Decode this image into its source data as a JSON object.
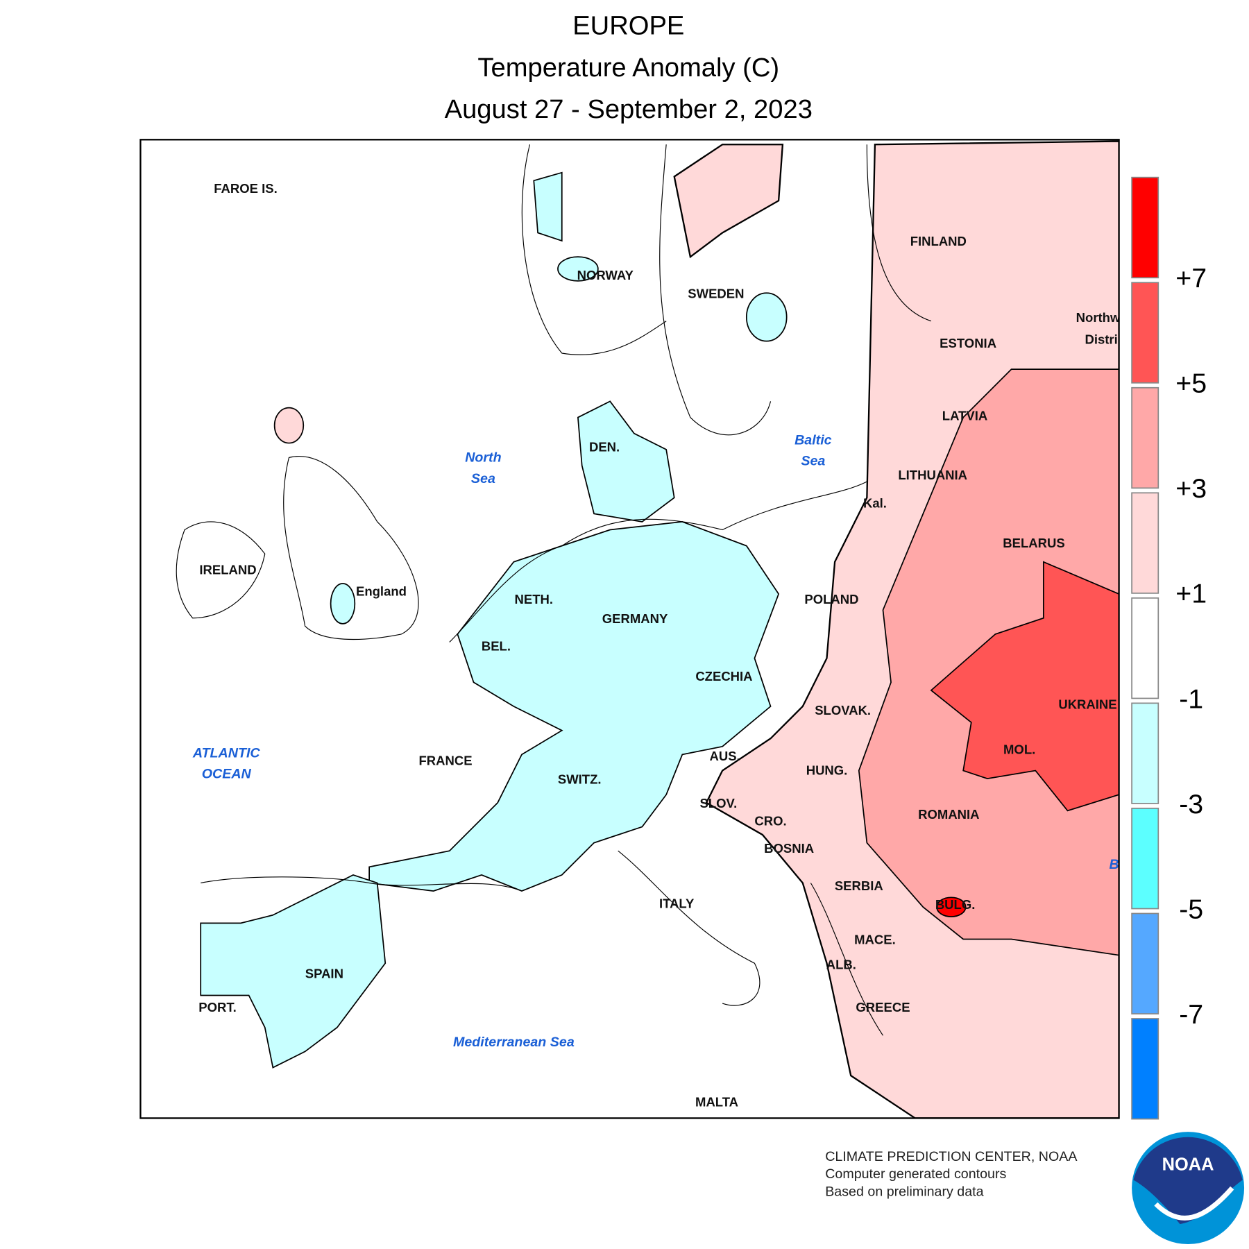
{
  "header": {
    "title": "EUROPE",
    "subtitle": "Temperature Anomaly (C)",
    "period": "August 27 - September 2, 2023"
  },
  "labels": [
    "FAROE IS.",
    "NORWAY",
    "SWEDEN",
    "FINLAND",
    "ESTONIA",
    "LATVIA",
    "LITHUANIA",
    "Kal.",
    "BELARUS",
    "POLAND",
    "DEN.",
    "IRELAND",
    "England",
    "NETH.",
    "GERMANY",
    "BEL.",
    "CZECHIA",
    "SLOVAK.",
    "UKRAINE",
    "FRANCE",
    "AUS.",
    "MOL.",
    "SWITZ.",
    "HUNG.",
    "SLOV.",
    "CRO.",
    "ROMANIA",
    "BOSNIA",
    "SERBIA",
    "ITALY",
    "BULG.",
    "MACE.",
    "ALB.",
    "SPAIN",
    "PORT.",
    "GREECE",
    "MALTA",
    "Northw",
    "Distri"
  ],
  "water_labels": [
    "North",
    "Sea",
    "Baltic",
    "Sea",
    "ATLANTIC",
    "OCEAN",
    "Mediterranean Sea",
    "B"
  ],
  "legend": {
    "colors": [
      "#ff0000",
      "#ff5555",
      "#ffa8a8",
      "#ffd9d9",
      "#ffffff",
      "#c8ffff",
      "#5cffff",
      "#55a8ff",
      "#0080ff"
    ],
    "ticks": [
      "+7",
      "+5",
      "+3",
      "+1",
      "-1",
      "-3",
      "-5",
      "-7"
    ]
  },
  "footer": [
    "CLIMATE PREDICTION CENTER, NOAA",
    "Computer generated contours",
    "Based on preliminary data"
  ],
  "logo": "NOAA"
}
